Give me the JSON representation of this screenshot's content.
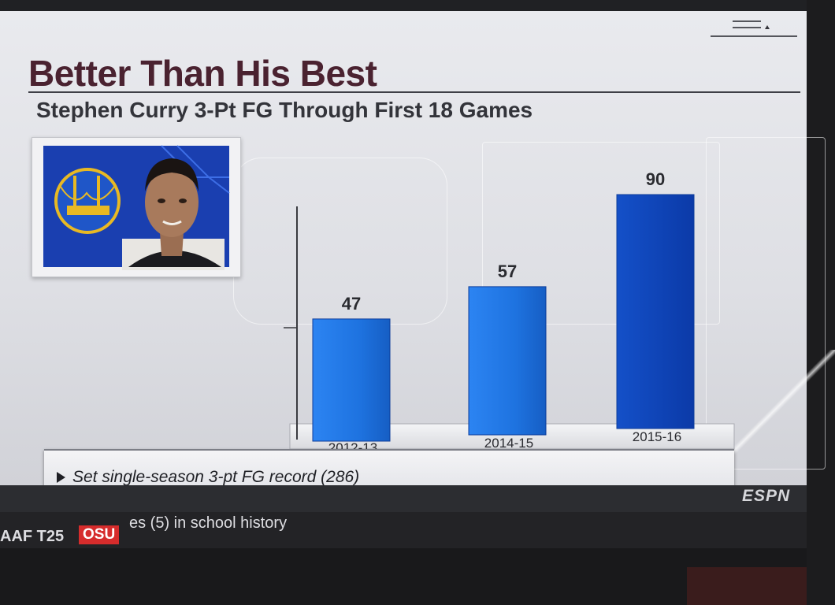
{
  "header": {
    "title": "Better Than His Best",
    "subtitle": "Stephen Curry 3-Pt FG Through First 18 Games"
  },
  "chart_data": {
    "type": "bar",
    "title": "Better Than His Best",
    "subtitle": "Stephen Curry 3-Pt FG Through First 18 Games",
    "categories": [
      "2012-13",
      "2014-15",
      "2015-16"
    ],
    "values": [
      47,
      57,
      90
    ],
    "ylim": [
      0,
      100
    ],
    "grid": false,
    "colors": [
      "#1e73e0",
      "#1d71de",
      "#0d40b8"
    ]
  },
  "lower_third": {
    "text": "Set single-season 3-pt FG record (286)"
  },
  "network": {
    "logo": "ESPN"
  },
  "ticker": {
    "left": "AAF T25",
    "badge": "OSU",
    "text": "es (5) in school history"
  },
  "colors": {
    "title": "#4a2230",
    "bar_primary": "#1e73e0",
    "bar_highlight": "#0d40b8",
    "ticker_badge": "#d62c2c"
  }
}
